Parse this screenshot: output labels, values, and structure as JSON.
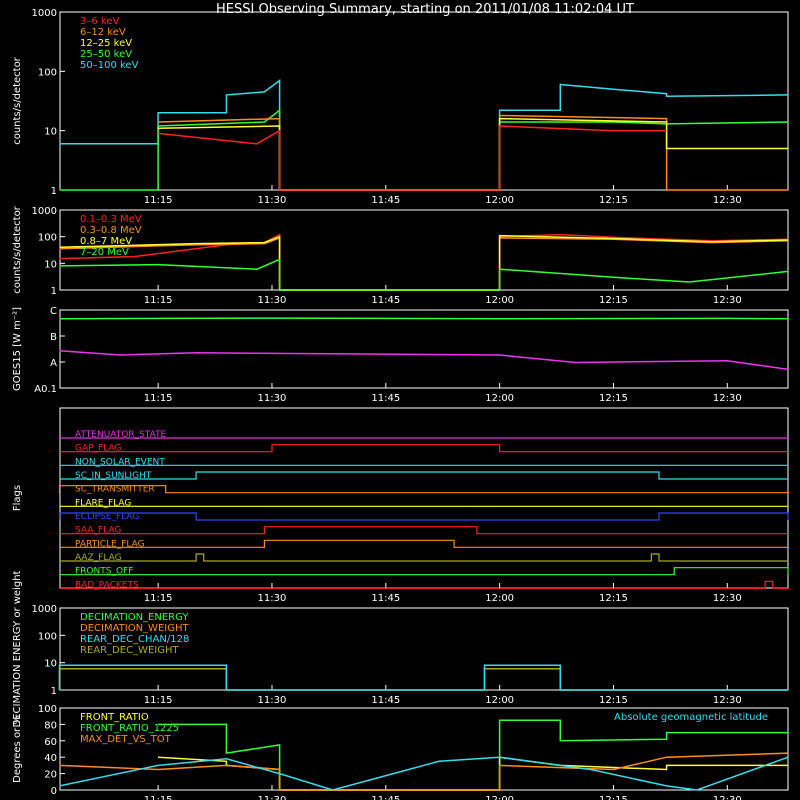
{
  "title": "HESSI Observing Summary, starting on 2011/01/08 11:02:04 UT",
  "xticks": [
    "11:15",
    "11:30",
    "11:45",
    "12:00",
    "12:15",
    "12:30"
  ],
  "panels": [
    {
      "id": "lowenergy",
      "type": "line",
      "ylabel": "counts/s/detector",
      "yscale": "log",
      "ylim": [
        1,
        1000
      ],
      "yticks": [
        "1",
        "10",
        "100",
        "1000"
      ],
      "legend": [
        {
          "label": "3–6 keV",
          "color": "#ff2020"
        },
        {
          "label": "6–12 keV",
          "color": "#ff8c1a"
        },
        {
          "label": "12–25 keV",
          "color": "#ffff33"
        },
        {
          "label": "25–50 keV",
          "color": "#33ff33"
        },
        {
          "label": "50–100 keV",
          "color": "#33ddee"
        }
      ],
      "series": [
        {
          "color": "#33ddee",
          "points": [
            [
              "11:02",
              6
            ],
            [
              "11:15",
              6
            ],
            [
              "11:15",
              20
            ],
            [
              "11:24",
              20
            ],
            [
              "11:24",
              40
            ],
            [
              "11:29",
              45
            ],
            [
              "11:31",
              70
            ],
            [
              "11:31",
              1
            ],
            [
              "12:00",
              1
            ],
            [
              "12:00",
              22
            ],
            [
              "12:08",
              22
            ],
            [
              "12:08",
              60
            ],
            [
              "12:15",
              50
            ],
            [
              "12:22",
              42
            ],
            [
              "12:22",
              38
            ],
            [
              "12:38",
              40
            ]
          ]
        },
        {
          "color": "#33ff33",
          "points": [
            [
              "11:02",
              1
            ],
            [
              "11:15",
              1
            ],
            [
              "11:15",
              12
            ],
            [
              "11:29",
              14
            ],
            [
              "11:31",
              22
            ],
            [
              "11:31",
              1
            ],
            [
              "12:00",
              1
            ],
            [
              "12:00",
              14
            ],
            [
              "12:15",
              14
            ],
            [
              "12:22",
              13
            ],
            [
              "12:38",
              14
            ]
          ]
        },
        {
          "color": "#ff8c1a",
          "points": [
            [
              "11:15",
              14
            ],
            [
              "11:31",
              16
            ],
            [
              "11:31",
              1
            ],
            [
              "12:00",
              1
            ],
            [
              "12:00",
              18
            ],
            [
              "12:22",
              16
            ],
            [
              "12:22",
              1
            ],
            [
              "12:38",
              1
            ]
          ]
        },
        {
          "color": "#ffff33",
          "points": [
            [
              "11:15",
              11
            ],
            [
              "11:31",
              12
            ],
            [
              "11:31",
              1
            ],
            [
              "12:00",
              1
            ],
            [
              "12:00",
              16
            ],
            [
              "12:22",
              14
            ],
            [
              "12:22",
              5
            ],
            [
              "12:38",
              5
            ]
          ]
        },
        {
          "color": "#ff2020",
          "points": [
            [
              "11:15",
              9
            ],
            [
              "11:28",
              6
            ],
            [
              "11:31",
              10
            ],
            [
              "11:31",
              1
            ],
            [
              "12:00",
              1
            ],
            [
              "12:00",
              12
            ],
            [
              "12:15",
              10
            ],
            [
              "12:22",
              10
            ]
          ]
        }
      ]
    },
    {
      "id": "highenergy",
      "type": "line",
      "ylabel": "counts/s/detector",
      "yscale": "log",
      "ylim": [
        1,
        1000
      ],
      "yticks": [
        "1",
        "10",
        "100",
        "1000"
      ],
      "legend": [
        {
          "label": "0.1–0.3 MeV",
          "color": "#ff2020"
        },
        {
          "label": "0.3–0.8 MeV",
          "color": "#ff8c1a"
        },
        {
          "label": "0.8–7 MeV",
          "color": "#ffff33"
        },
        {
          "label": "7–20 MeV",
          "color": "#33ff33"
        }
      ],
      "series": [
        {
          "color": "#ff2020",
          "points": [
            [
              "11:02",
              15
            ],
            [
              "11:12",
              18
            ],
            [
              "11:24",
              50
            ],
            [
              "11:29",
              60
            ],
            [
              "11:31",
              120
            ],
            [
              "11:31",
              1
            ],
            [
              "12:00",
              1
            ],
            [
              "12:00",
              100
            ],
            [
              "12:08",
              120
            ],
            [
              "12:15",
              95
            ],
            [
              "12:28",
              70
            ],
            [
              "12:38",
              80
            ]
          ]
        },
        {
          "color": "#ff8c1a",
          "points": [
            [
              "11:02",
              35
            ],
            [
              "11:20",
              50
            ],
            [
              "11:29",
              55
            ],
            [
              "11:31",
              90
            ],
            [
              "11:31",
              1
            ],
            [
              "12:00",
              1
            ],
            [
              "12:00",
              90
            ],
            [
              "12:15",
              80
            ],
            [
              "12:28",
              60
            ],
            [
              "12:38",
              70
            ]
          ]
        },
        {
          "color": "#ffff33",
          "points": [
            [
              "11:02",
              40
            ],
            [
              "11:20",
              55
            ],
            [
              "11:29",
              60
            ],
            [
              "11:31",
              100
            ],
            [
              "11:31",
              1
            ],
            [
              "12:00",
              1
            ],
            [
              "12:00",
              110
            ],
            [
              "12:15",
              85
            ],
            [
              "12:28",
              65
            ],
            [
              "12:38",
              75
            ]
          ]
        },
        {
          "color": "#33ff33",
          "points": [
            [
              "11:02",
              8
            ],
            [
              "11:15",
              9
            ],
            [
              "11:28",
              6
            ],
            [
              "11:31",
              14
            ],
            [
              "11:31",
              1
            ],
            [
              "12:00",
              1
            ],
            [
              "12:00",
              6
            ],
            [
              "12:15",
              3
            ],
            [
              "12:25",
              2
            ],
            [
              "12:38",
              5
            ]
          ]
        }
      ]
    },
    {
      "id": "goes",
      "type": "line",
      "ylabel": "GOES15 [W m⁻²]",
      "yscale": "log",
      "ylim": [
        0.1,
        10
      ],
      "yticks": [
        "A0.1",
        "A",
        "B",
        "C"
      ],
      "series": [
        {
          "color": "#33ff33",
          "points": [
            [
              "11:02",
              6
            ],
            [
              "11:30",
              6.2
            ],
            [
              "12:00",
              6
            ],
            [
              "12:30",
              6.1
            ],
            [
              "12:38",
              6
            ]
          ]
        },
        {
          "color": "#ee33ee",
          "points": [
            [
              "11:02",
              0.9
            ],
            [
              "11:10",
              0.7
            ],
            [
              "11:20",
              0.8
            ],
            [
              "11:40",
              0.75
            ],
            [
              "12:00",
              0.7
            ],
            [
              "12:10",
              0.45
            ],
            [
              "12:30",
              0.5
            ],
            [
              "12:38",
              0.3
            ]
          ]
        }
      ]
    },
    {
      "id": "flags",
      "type": "line",
      "ylabel": "Flags",
      "flags": [
        {
          "label": "ATTENUATOR_STATE",
          "color": "#dd33dd",
          "high": []
        },
        {
          "label": "GAP_FLAG",
          "color": "#ff2020",
          "high": [
            [
              "11:30",
              "12:00"
            ]
          ]
        },
        {
          "label": "NON_SOLAR_EVENT",
          "color": "#33ddee",
          "high": []
        },
        {
          "label": "SC_IN_SUNLIGHT",
          "color": "#33ddee",
          "high": [
            [
              "11:20",
              "12:21"
            ]
          ]
        },
        {
          "label": "SC_TRANSMITTER",
          "color": "#ff8c1a",
          "high": [
            [
              "11:02",
              "11:16"
            ]
          ]
        },
        {
          "label": "FLARE_FLAG",
          "color": "#ffff33",
          "high": []
        },
        {
          "label": "ECLIPSE_FLAG",
          "color": "#3344ff",
          "high": [
            [
              "11:02",
              "11:20"
            ],
            [
              "12:21",
              "12:38"
            ]
          ]
        },
        {
          "label": "SAA_FLAG",
          "color": "#ff2020",
          "high": [
            [
              "11:29",
              "11:57"
            ]
          ]
        },
        {
          "label": "PARTICLE_FLAG",
          "color": "#ff8c1a",
          "high": [
            [
              "11:29",
              "11:54"
            ]
          ]
        },
        {
          "label": "AAZ_FLAG",
          "color": "#aaaa22",
          "high": [
            [
              "11:20",
              "11:21"
            ],
            [
              "12:20",
              "12:21"
            ]
          ]
        },
        {
          "label": "FRONTS_OFF",
          "color": "#33ff33",
          "high": [
            [
              "12:23",
              "12:38"
            ]
          ]
        },
        {
          "label": "BAD_PACKETS",
          "color": "#ff2020",
          "high": [
            [
              "12:35",
              "12:36"
            ]
          ]
        }
      ]
    },
    {
      "id": "decimation",
      "type": "line",
      "ylabel": "DECIMATION ENERGY or weight",
      "yscale": "log",
      "ylim": [
        1,
        1000
      ],
      "yticks": [
        "1",
        "10",
        "100",
        "1000"
      ],
      "legend": [
        {
          "label": "DECIMATION_ENERGY",
          "color": "#33ff33"
        },
        {
          "label": "DECIMATION_WEIGHT",
          "color": "#ff8c1a"
        },
        {
          "label": "REAR_DEC_CHAN/128",
          "color": "#33ddee"
        },
        {
          "label": "REAR_DEC_WEIGHT",
          "color": "#aaaa22"
        }
      ],
      "series": [
        {
          "color": "#aaaa22",
          "points": [
            [
              "11:02",
              1
            ],
            [
              "11:02",
              6
            ],
            [
              "11:24",
              6
            ],
            [
              "11:24",
              1
            ],
            [
              "11:58",
              1
            ],
            [
              "11:58",
              6
            ],
            [
              "12:08",
              6
            ],
            [
              "12:08",
              1
            ],
            [
              "12:38",
              1
            ]
          ]
        },
        {
          "color": "#33ddee",
          "points": [
            [
              "11:02",
              1
            ],
            [
              "11:02",
              8
            ],
            [
              "11:24",
              8
            ],
            [
              "11:24",
              1
            ],
            [
              "11:58",
              1
            ],
            [
              "11:58",
              8
            ],
            [
              "12:08",
              8
            ],
            [
              "12:08",
              1
            ],
            [
              "12:38",
              1
            ]
          ]
        }
      ]
    },
    {
      "id": "ratio",
      "type": "line",
      "ylabel": "Degrees or %",
      "ylim": [
        0,
        100
      ],
      "yticks": [
        "0",
        "20",
        "40",
        "60",
        "80",
        "100"
      ],
      "legend": [
        {
          "label": "FRONT_RATIO",
          "color": "#ffff33"
        },
        {
          "label": "FRONT_RATIO_1225",
          "color": "#33ff33"
        },
        {
          "label": "MAX_DET_VS_TOT",
          "color": "#ff8c1a"
        }
      ],
      "annotation": {
        "label": "Absolute geomagnetic latitude",
        "color": "#33ddee"
      },
      "series": [
        {
          "color": "#33ff33",
          "points": [
            [
              "11:15",
              80
            ],
            [
              "11:24",
              80
            ],
            [
              "11:24",
              45
            ],
            [
              "11:31",
              55
            ],
            [
              "11:31",
              0
            ],
            [
              "12:00",
              0
            ],
            [
              "12:00",
              85
            ],
            [
              "12:08",
              85
            ],
            [
              "12:08",
              60
            ],
            [
              "12:22",
              62
            ],
            [
              "12:22",
              70
            ],
            [
              "12:38",
              70
            ]
          ]
        },
        {
          "color": "#ffff33",
          "points": [
            [
              "11:15",
              40
            ],
            [
              "11:24",
              35
            ],
            [
              "11:24",
              30
            ],
            [
              "11:31",
              25
            ],
            [
              "11:31",
              0
            ],
            [
              "12:00",
              0
            ],
            [
              "12:00",
              40
            ],
            [
              "12:08",
              30
            ],
            [
              "12:22",
              25
            ],
            [
              "12:22",
              30
            ],
            [
              "12:38",
              30
            ]
          ]
        },
        {
          "color": "#ff8c1a",
          "points": [
            [
              "11:02",
              30
            ],
            [
              "11:15",
              25
            ],
            [
              "11:24",
              30
            ],
            [
              "11:31",
              25
            ],
            [
              "11:31",
              0
            ],
            [
              "12:00",
              0
            ],
            [
              "12:00",
              30
            ],
            [
              "12:15",
              25
            ],
            [
              "12:22",
              40
            ],
            [
              "12:38",
              45
            ]
          ]
        },
        {
          "color": "#33ddee",
          "points": [
            [
              "11:02",
              5
            ],
            [
              "11:15",
              30
            ],
            [
              "11:24",
              38
            ],
            [
              "11:31",
              20
            ],
            [
              "11:38",
              0
            ],
            [
              "11:52",
              35
            ],
            [
              "12:00",
              40
            ],
            [
              "12:12",
              25
            ],
            [
              "12:22",
              5
            ],
            [
              "12:26",
              0
            ],
            [
              "12:38",
              40
            ]
          ]
        }
      ]
    }
  ]
}
